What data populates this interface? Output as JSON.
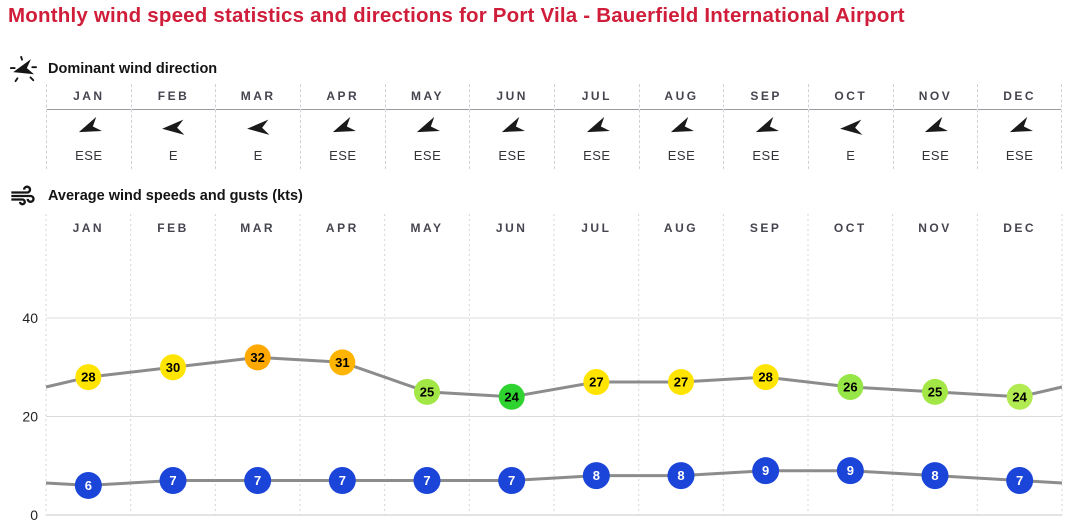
{
  "title": "Monthly wind speed statistics and directions for Port Vila - Bauerfield International Airport",
  "colors": {
    "title": "#cf1d3a",
    "line": "#8c8c8c",
    "month_label": "#45454f",
    "axis_label": "#222222",
    "arrow": "#1a1a1a"
  },
  "sections": {
    "wind_direction": {
      "label": "Dominant wind direction",
      "icon": "wind-direction-icon",
      "months": [
        "JAN",
        "FEB",
        "MAR",
        "APR",
        "MAY",
        "JUN",
        "JUL",
        "AUG",
        "SEP",
        "OCT",
        "NOV",
        "DEC"
      ],
      "directions": [
        "ESE",
        "E",
        "E",
        "ESE",
        "ESE",
        "ESE",
        "ESE",
        "ESE",
        "ESE",
        "E",
        "ESE",
        "ESE"
      ]
    },
    "wind_speed": {
      "label": "Average wind speeds and gusts (kts)",
      "icon": "wind-gust-icon"
    }
  },
  "chart_data": {
    "type": "line",
    "title": "Average wind speeds and gusts (kts)",
    "categories": [
      "JAN",
      "FEB",
      "MAR",
      "APR",
      "MAY",
      "JUN",
      "JUL",
      "AUG",
      "SEP",
      "OCT",
      "NOV",
      "DEC"
    ],
    "series": [
      {
        "name": "wind gusts",
        "values": [
          28,
          30,
          32,
          31,
          25,
          24,
          27,
          27,
          28,
          26,
          25,
          24
        ],
        "point_colors": [
          "#ffe400",
          "#ffe400",
          "#ffa800",
          "#ffb400",
          "#a3e747",
          "#2fd32f",
          "#ffe400",
          "#ffe400",
          "#ffe400",
          "#97e647",
          "#a3e747",
          "#b2ea52"
        ],
        "label_color": "#000000"
      },
      {
        "name": "average wind speed",
        "values": [
          6,
          7,
          7,
          7,
          7,
          7,
          8,
          8,
          9,
          9,
          8,
          7
        ],
        "point_colors": [
          "#1b45d8",
          "#1b45d8",
          "#1b45d8",
          "#1b45d8",
          "#1b45d8",
          "#1b45d8",
          "#1b45d8",
          "#1b45d8",
          "#1b45d8",
          "#1b45d8",
          "#1b45d8",
          "#1b45d8"
        ],
        "label_color": "#ffffff"
      }
    ],
    "yticks": [
      0,
      20,
      40
    ],
    "ylim": [
      0,
      55
    ],
    "xlabel": "",
    "ylabel": "",
    "grid": "horizontal",
    "legend": "none"
  }
}
